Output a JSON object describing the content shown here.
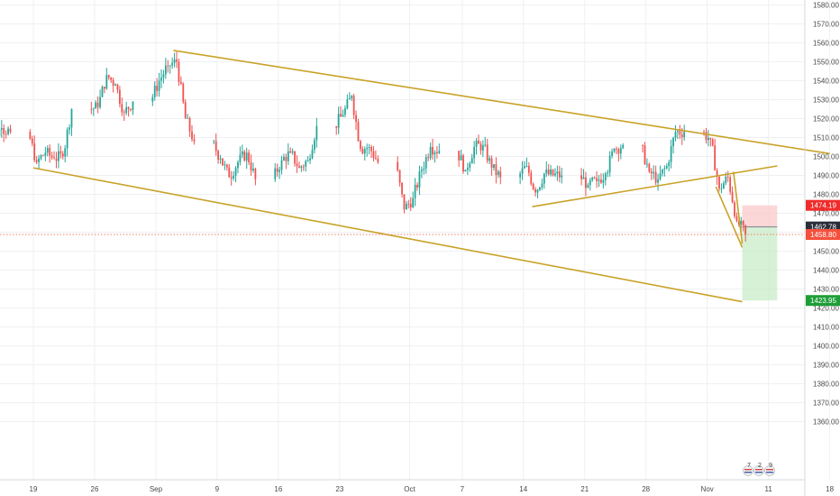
{
  "colors": {
    "up": "#26a69a",
    "down": "#ef5350",
    "trendline": "#c9a227",
    "grid": "#eef0f3",
    "axis_text": "#4a4a4a",
    "stop_zone": "#f9caca",
    "target_zone": "#c9ecc9",
    "tag_red": "#ef2b2b",
    "tag_dark": "#2a2e39",
    "tag_current": "#f5503d",
    "tag_green": "#1e9e37"
  },
  "chart_data": {
    "type": "candlestick",
    "instrument_unit": "price",
    "x_ticks": [
      "19",
      "26",
      "Sep",
      "9",
      "16",
      "23",
      "Oct",
      "7",
      "14",
      "21",
      "28",
      "Nov",
      "11",
      "18"
    ],
    "y_ticks": [
      "1580.00",
      "1570.00",
      "1560.00",
      "1550.00",
      "1540.00",
      "1530.00",
      "1520.00",
      "1510.00",
      "1500.00",
      "1490.00",
      "1480.00",
      "1470.00",
      "1460.00",
      "1450.00",
      "1440.00",
      "1430.00",
      "1420.00",
      "1410.00",
      "1400.00",
      "1390.00",
      "1380.00",
      "1370.00",
      "1360.00"
    ],
    "ylim": [
      1353,
      1585
    ],
    "grid": true,
    "closes_by_day": [
      {
        "d": "2019-08-14",
        "c": 1510
      },
      {
        "d": "2019-08-15",
        "c": 1515
      },
      {
        "d": "2019-08-16",
        "c": 1513
      },
      {
        "d": "2019-08-19",
        "c": 1497
      },
      {
        "d": "2019-08-20",
        "c": 1502
      },
      {
        "d": "2019-08-21",
        "c": 1499
      },
      {
        "d": "2019-08-22",
        "c": 1500
      },
      {
        "d": "2019-08-23",
        "c": 1525
      },
      {
        "d": "2019-08-26",
        "c": 1526
      },
      {
        "d": "2019-08-27",
        "c": 1543
      },
      {
        "d": "2019-08-28",
        "c": 1538
      },
      {
        "d": "2019-08-29",
        "c": 1523
      },
      {
        "d": "2019-08-30",
        "c": 1529
      },
      {
        "d": "2019-09-02",
        "c": 1540
      },
      {
        "d": "2019-09-03",
        "c": 1548
      },
      {
        "d": "2019-09-04",
        "c": 1550
      },
      {
        "d": "2019-09-05",
        "c": 1520
      },
      {
        "d": "2019-09-06",
        "c": 1508
      },
      {
        "d": "2019-09-09",
        "c": 1499
      },
      {
        "d": "2019-09-10",
        "c": 1489
      },
      {
        "d": "2019-09-11",
        "c": 1497
      },
      {
        "d": "2019-09-12",
        "c": 1502
      },
      {
        "d": "2019-09-13",
        "c": 1488
      },
      {
        "d": "2019-09-16",
        "c": 1498
      },
      {
        "d": "2019-09-17",
        "c": 1502
      },
      {
        "d": "2019-09-18",
        "c": 1494
      },
      {
        "d": "2019-09-19",
        "c": 1498
      },
      {
        "d": "2019-09-20",
        "c": 1516
      },
      {
        "d": "2019-09-23",
        "c": 1522
      },
      {
        "d": "2019-09-24",
        "c": 1532
      },
      {
        "d": "2019-09-25",
        "c": 1504
      },
      {
        "d": "2019-09-26",
        "c": 1505
      },
      {
        "d": "2019-09-27",
        "c": 1497
      },
      {
        "d": "2019-09-30",
        "c": 1472
      },
      {
        "d": "2019-10-01",
        "c": 1478
      },
      {
        "d": "2019-10-02",
        "c": 1493
      },
      {
        "d": "2019-10-03",
        "c": 1505
      },
      {
        "d": "2019-10-04",
        "c": 1503
      },
      {
        "d": "2019-10-07",
        "c": 1493
      },
      {
        "d": "2019-10-08",
        "c": 1505
      },
      {
        "d": "2019-10-09",
        "c": 1506
      },
      {
        "d": "2019-10-10",
        "c": 1494
      },
      {
        "d": "2019-10-11",
        "c": 1489
      },
      {
        "d": "2019-10-14",
        "c": 1495
      },
      {
        "d": "2019-10-15",
        "c": 1481
      },
      {
        "d": "2019-10-16",
        "c": 1491
      },
      {
        "d": "2019-10-17",
        "c": 1490
      },
      {
        "d": "2019-10-18",
        "c": 1490
      },
      {
        "d": "2019-10-21",
        "c": 1485
      },
      {
        "d": "2019-10-22",
        "c": 1487
      },
      {
        "d": "2019-10-23",
        "c": 1491
      },
      {
        "d": "2019-10-24",
        "c": 1504
      },
      {
        "d": "2019-10-25",
        "c": 1506
      },
      {
        "d": "2019-10-28",
        "c": 1492
      },
      {
        "d": "2019-10-29",
        "c": 1488
      },
      {
        "d": "2019-10-30",
        "c": 1495
      },
      {
        "d": "2019-10-31",
        "c": 1513
      },
      {
        "d": "2019-11-01",
        "c": 1513
      },
      {
        "d": "2019-11-04",
        "c": 1509
      },
      {
        "d": "2019-11-05",
        "c": 1483
      },
      {
        "d": "2019-11-06",
        "c": 1489
      },
      {
        "d": "2019-11-07",
        "c": 1466
      },
      {
        "d": "2019-11-08",
        "c": 1459
      }
    ],
    "trendlines": [
      {
        "name": "channel-upper",
        "from": {
          "d": "2019-09-04",
          "p": 1556
        },
        "to": {
          "d": "2019-11-18",
          "p": 1501.5
        }
      },
      {
        "name": "channel-lower",
        "from": {
          "d": "2019-08-19",
          "p": 1494
        },
        "to": {
          "d": "2019-11-08",
          "p": 1423.3
        }
      },
      {
        "name": "rising-wedge-lower",
        "from": {
          "d": "2019-10-15",
          "p": 1473.5
        },
        "to": {
          "d": "2019-11-12",
          "p": 1495
        }
      },
      {
        "name": "falling-wedge-left",
        "from": {
          "d": "2019-11-05",
          "p": 1484
        },
        "to": {
          "d": "2019-11-08",
          "p": 1452
        }
      },
      {
        "name": "falling-wedge-right",
        "from": {
          "d": "2019-11-07",
          "p": 1492
        },
        "to": {
          "d": "2019-11-08",
          "p": 1454
        }
      }
    ],
    "position": {
      "entry": 1462.78,
      "stop": 1474.19,
      "target": 1423.95,
      "from": "2019-11-08",
      "to": "2019-11-12"
    },
    "price_labels": [
      {
        "label": "1474.19",
        "role": "stop"
      },
      {
        "label": "1462.78",
        "role": "entry"
      },
      {
        "label": "1458.80",
        "role": "current"
      },
      {
        "label": "1423.95",
        "role": "target"
      }
    ],
    "current_price": 1458.8
  },
  "calendar_icons": [
    "7",
    "2",
    "9"
  ]
}
